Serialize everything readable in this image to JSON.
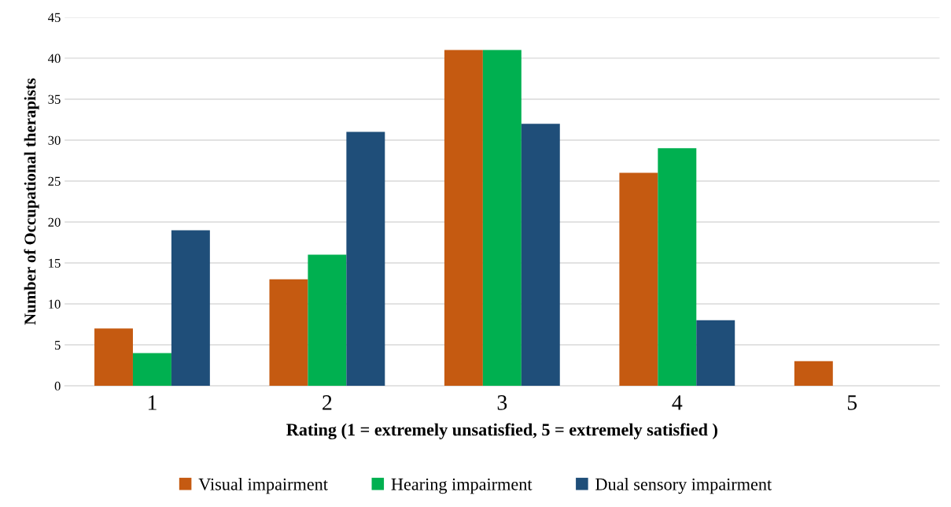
{
  "chart_data": {
    "type": "bar",
    "categories": [
      "1",
      "2",
      "3",
      "4",
      "5"
    ],
    "series": [
      {
        "name": "Visual impairment",
        "color": "#c55a11",
        "values": [
          7,
          13,
          41,
          26,
          3
        ]
      },
      {
        "name": "Hearing impairment",
        "color": "#00b050",
        "values": [
          4,
          16,
          41,
          29,
          0
        ]
      },
      {
        "name": "Dual sensory impairment",
        "color": "#1f4e79",
        "values": [
          19,
          31,
          32,
          8,
          0
        ]
      }
    ],
    "xlabel": "Rating (1 = extremely unsatisfied, 5 = extremely satisfied )",
    "ylabel": "Number of Occupational therapists",
    "ylim": [
      0,
      45
    ],
    "yticks": [
      0,
      5,
      10,
      15,
      20,
      25,
      30,
      35,
      40,
      45
    ],
    "grid": "y",
    "legend": "bottom"
  }
}
